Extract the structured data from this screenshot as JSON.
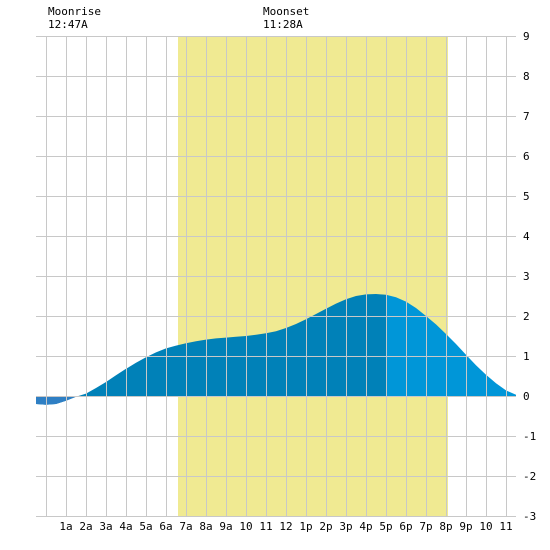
{
  "moon": {
    "rise_title": "Moonrise",
    "rise_time": "12:47A",
    "set_title": "Moonset",
    "set_time": "11:28A"
  },
  "colors": {
    "background": "#ffffff",
    "grid": "#c8c8c8",
    "daylight": "#f0ea92",
    "tide_dark": "#0081b8",
    "tide_light": "#0096d8",
    "tide_negative": "#2f7fc4"
  },
  "chart_data": {
    "type": "area",
    "title": "",
    "xlabel": "",
    "ylabel": "",
    "xlim": [
      -0.5,
      23.5
    ],
    "ylim": [
      -3,
      9
    ],
    "grid": true,
    "yticks": [
      -3,
      -2,
      -1,
      0,
      1,
      2,
      3,
      4,
      5,
      6,
      7,
      8,
      9
    ],
    "ytick_labels": [
      "-3",
      "-2",
      "-1",
      "0",
      "1",
      "2",
      "3",
      "4",
      "5",
      "6",
      "7",
      "8",
      "9"
    ],
    "xticks": [
      1,
      2,
      3,
      4,
      5,
      6,
      7,
      8,
      9,
      10,
      11,
      12,
      13,
      14,
      15,
      16,
      17,
      18,
      19,
      20,
      21,
      22,
      23
    ],
    "xtick_labels": [
      "1a",
      "2a",
      "3a",
      "4a",
      "5a",
      "6a",
      "7a",
      "8a",
      "9a",
      "10",
      "11",
      "12",
      "1p",
      "2p",
      "3p",
      "4p",
      "5p",
      "6p",
      "7p",
      "8p",
      "9p",
      "10",
      "11"
    ],
    "daylight_hours": [
      6.6,
      20.1
    ],
    "current_time_hour": 17.0,
    "series": [
      {
        "x": [
          -0.5,
          0,
          0.5,
          1,
          1.5,
          2,
          2.5,
          3,
          3.5,
          4,
          4.5,
          5,
          5.5,
          6,
          6.5,
          7,
          7.5,
          8,
          8.5,
          9,
          9.5,
          10,
          10.5,
          11,
          11.5,
          12,
          12.5,
          13,
          13.5,
          14,
          14.5,
          15,
          15.5,
          16,
          16.5,
          17,
          17.5,
          18,
          18.5,
          19,
          19.5,
          20,
          20.5,
          21,
          21.5,
          22,
          22.5,
          23,
          23.5
        ],
        "values": [
          -0.2,
          -0.22,
          -0.2,
          -0.12,
          -0.02,
          0.06,
          0.2,
          0.35,
          0.52,
          0.68,
          0.83,
          0.97,
          1.09,
          1.19,
          1.26,
          1.32,
          1.37,
          1.41,
          1.44,
          1.46,
          1.48,
          1.5,
          1.53,
          1.57,
          1.62,
          1.7,
          1.8,
          1.92,
          2.05,
          2.18,
          2.31,
          2.42,
          2.5,
          2.54,
          2.55,
          2.53,
          2.47,
          2.36,
          2.2,
          2.0,
          1.79,
          1.55,
          1.3,
          1.03,
          0.77,
          0.53,
          0.32,
          0.14,
          0.03
        ]
      }
    ]
  }
}
